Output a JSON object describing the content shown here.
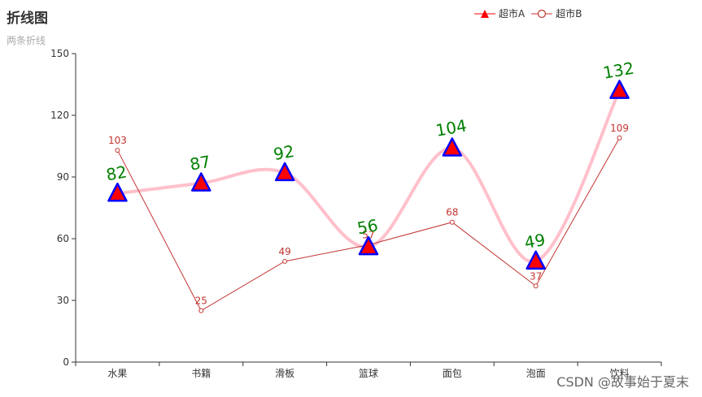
{
  "chart_data": {
    "type": "line",
    "title": "折线图",
    "subtitle": "两条折线",
    "categories": [
      "水果",
      "书籍",
      "滑板",
      "篮球",
      "面包",
      "泡面",
      "饮料"
    ],
    "ylim": [
      0,
      150
    ],
    "yticks": [
      0,
      30,
      60,
      90,
      120,
      150
    ],
    "series": [
      {
        "name": "超市A",
        "values": [
          82,
          87,
          92,
          56,
          104,
          49,
          132
        ],
        "line_color": "#ffc0cb",
        "marker": "triangle",
        "marker_fill": "#ff0000",
        "marker_stroke": "#0000ff",
        "label_color": "#008000"
      },
      {
        "name": "超市B",
        "values": [
          103,
          25,
          49,
          57,
          68,
          37,
          109
        ],
        "line_color": "#c23531",
        "marker": "circle",
        "marker_fill": "#ffffff",
        "marker_stroke": "#c23531",
        "label_color": "#c23531"
      }
    ]
  },
  "watermark": "CSDN @故事始于夏末"
}
